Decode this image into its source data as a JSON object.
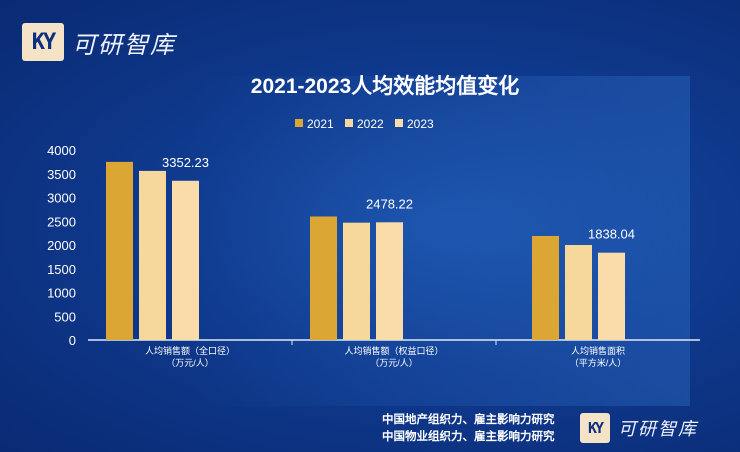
{
  "brand": {
    "logo_mark": "KY",
    "name": "可研智库"
  },
  "footer": {
    "lines": [
      "中国地产组织力、雇主影响力研究",
      "中国物业组织力、雇主影响力研究"
    ],
    "brand": "可研智库"
  },
  "colors": {
    "s2021": "#dca634",
    "s2022": "#f6d79c",
    "s2023": "#f9dcaa",
    "axis": "#dfe7f5"
  },
  "chart_data": {
    "type": "bar",
    "title": "2021-2023人均效能均值变化",
    "categories": [
      "人均销售额（全口径）\n（万元/人）",
      "人均销售额（权益口径）\n（万元/人）",
      "人均销售面积\n（平方米/人）"
    ],
    "series": [
      {
        "name": "2021",
        "values": [
          3750,
          2600,
          2190
        ]
      },
      {
        "name": "2022",
        "values": [
          3560,
          2470,
          2000
        ]
      },
      {
        "name": "2023",
        "values": [
          3352.23,
          2478.22,
          1838.04
        ]
      }
    ],
    "data_labels": [
      "3352.23",
      "2478.22",
      "1838.04"
    ],
    "yticks": [
      0,
      500,
      1000,
      1500,
      2000,
      2500,
      3000,
      3500,
      4000
    ],
    "ylim": [
      0,
      4000
    ],
    "legend": "top-center",
    "grid": false
  }
}
